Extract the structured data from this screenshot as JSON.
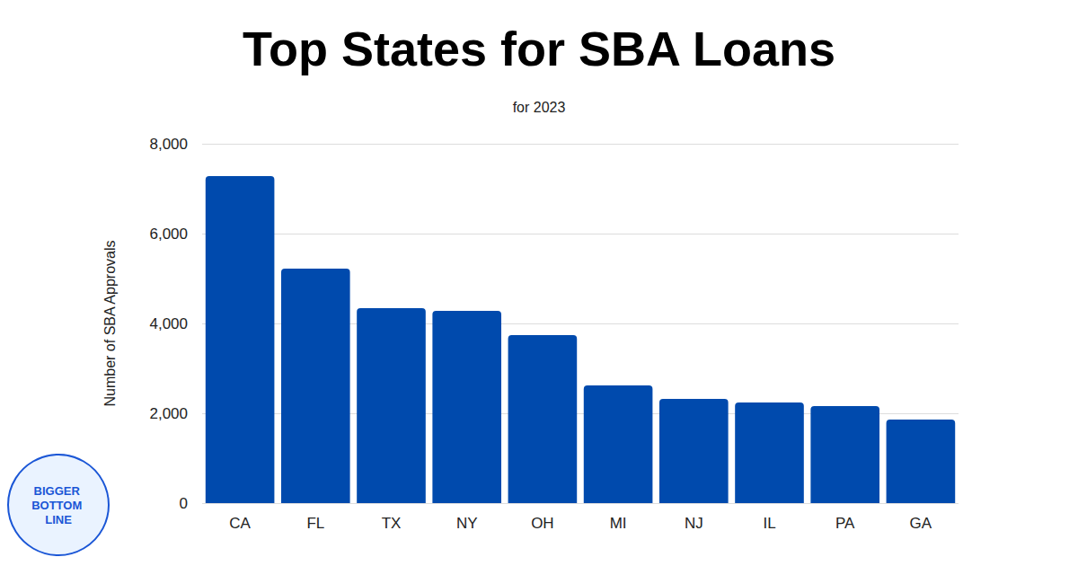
{
  "chart_data": {
    "type": "bar",
    "title": "Top States for SBA Loans",
    "subtitle": "for 2023",
    "y_label": "Number of SBA Approvals",
    "annotations": [
      "BIGGER BOTTOM LINE"
    ],
    "categories": [
      "CA",
      "FL",
      "TX",
      "NY",
      "OH",
      "MI",
      "NJ",
      "IL",
      "PA",
      "GA"
    ],
    "values": [
      7280,
      5220,
      4340,
      4280,
      3740,
      2620,
      2320,
      2240,
      2160,
      1860
    ],
    "color": "#004aad",
    "ylim": [
      0,
      8000
    ],
    "yticks": [
      0,
      {
        "value": 2000,
        "label": "2,000"
      },
      {
        "value": 4000,
        "label": "4,000"
      },
      {
        "value": 6000,
        "label": "6,000"
      },
      {
        "value": 8000,
        "label": "8,000"
      }
    ],
    "grid": true
  }
}
